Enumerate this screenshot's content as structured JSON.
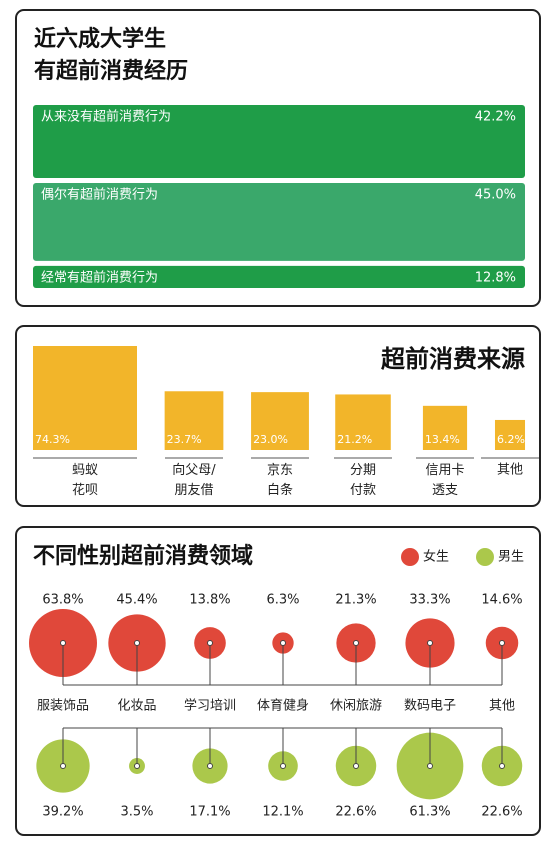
{
  "chart_data": [
    {
      "type": "block",
      "title": "近六成大学生\n有超前消费经历",
      "categories": [
        "从来没有超前消费行为",
        "偶尔有超前消费行为",
        "经常有超前消费行为"
      ],
      "values": [
        42.2,
        45.0,
        12.8
      ],
      "value_labels": [
        "42.2%",
        "45.0%",
        "12.8%"
      ],
      "colors": [
        "#1f9d48",
        "#3aa86b",
        "#1f9d48"
      ]
    },
    {
      "type": "square",
      "title": "超前消费来源",
      "categories": [
        "蚂蚁\n花呗",
        "向父母/\n朋友借",
        "京东\n白条",
        "分期\n付款",
        "信用卡\n透支",
        "其他"
      ],
      "values": [
        74.3,
        23.7,
        23.0,
        21.2,
        13.4,
        6.2
      ],
      "value_labels": [
        "74.3%",
        "23.7%",
        "23.0%",
        "21.2%",
        "13.4%",
        "6.2%"
      ],
      "color": "#f2b52a"
    },
    {
      "type": "bubble",
      "title": "不同性别超前消费领域",
      "categories": [
        "服装饰品",
        "化妆品",
        "学习培训",
        "体育健身",
        "休闲旅游",
        "数码电子",
        "其他"
      ],
      "series": [
        {
          "name": "女生",
          "color": "#e0483a",
          "values": [
            63.8,
            45.4,
            13.8,
            6.3,
            21.3,
            33.3,
            14.6
          ],
          "value_labels": [
            "63.8%",
            "45.4%",
            "13.8%",
            "6.3%",
            "21.3%",
            "33.3%",
            "14.6%"
          ]
        },
        {
          "name": "男生",
          "color": "#abc84b",
          "values": [
            39.2,
            3.5,
            17.1,
            12.1,
            22.6,
            61.3,
            22.6
          ],
          "value_labels": [
            "39.2%",
            "3.5%",
            "17.1%",
            "12.1%",
            "22.6%",
            "61.3%",
            "22.6%"
          ]
        }
      ]
    }
  ]
}
